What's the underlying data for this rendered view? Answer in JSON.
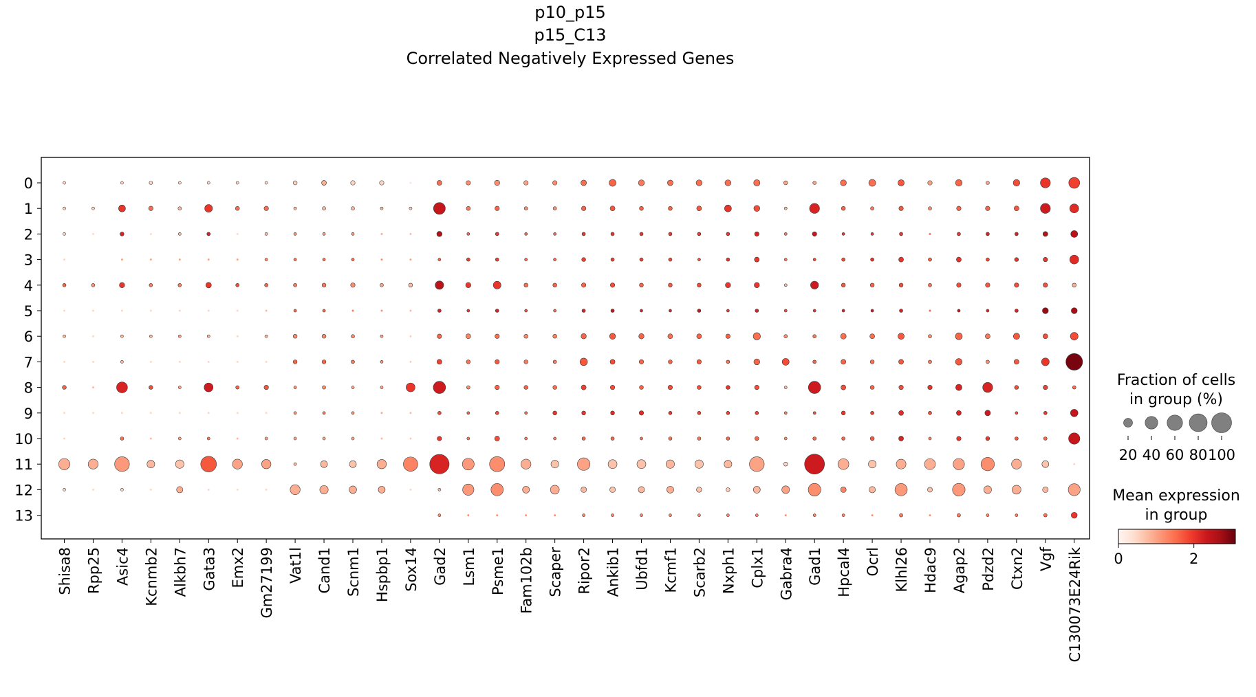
{
  "chart_data": {
    "type": "dotplot",
    "title_lines": [
      "p10_p15",
      "p15_C13",
      "Correlated Negatively Expressed Genes"
    ],
    "genes": [
      "Shisa8",
      "Rpp25",
      "Asic4",
      "Kcnmb2",
      "Alkbh7",
      "Gata3",
      "Emx2",
      "Gm27199",
      "Vat1l",
      "Cand1",
      "Scnm1",
      "Hspbp1",
      "Sox14",
      "Gad2",
      "Lsm1",
      "Psme1",
      "Fam102b",
      "Scaper",
      "Ripor2",
      "Ankib1",
      "Ubfd1",
      "Kcmf1",
      "Scarb2",
      "Nxph1",
      "Cplx1",
      "Gabra4",
      "Gad1",
      "Hpcal4",
      "Ocrl",
      "Klhl26",
      "Hdac9",
      "Agap2",
      "Pdzd2",
      "Ctxn2",
      "Vgf",
      "C130073E24Rik"
    ],
    "groups": [
      "0",
      "1",
      "2",
      "3",
      "4",
      "5",
      "6",
      "7",
      "8",
      "9",
      "10",
      "11",
      "12",
      "13"
    ],
    "fraction_percent": [
      [
        2,
        0,
        2,
        3,
        2,
        2,
        2,
        2,
        4,
        6,
        5,
        5,
        1,
        6,
        5,
        7,
        5,
        5,
        8,
        12,
        9,
        8,
        9,
        9,
        10,
        4,
        3,
        9,
        12,
        10,
        5,
        11,
        3,
        11,
        25,
        30
      ],
      [
        2,
        2,
        12,
        5,
        3,
        15,
        4,
        5,
        2,
        3,
        3,
        2,
        2,
        35,
        4,
        5,
        3,
        3,
        5,
        6,
        4,
        4,
        6,
        12,
        9,
        2,
        25,
        4,
        3,
        5,
        3,
        5,
        5,
        6,
        25,
        20
      ],
      [
        2,
        1,
        4,
        1,
        2,
        3,
        1,
        2,
        2,
        2,
        2,
        1,
        1,
        7,
        2,
        3,
        2,
        2,
        3,
        3,
        3,
        3,
        3,
        3,
        5,
        2,
        5,
        2,
        2,
        3,
        1,
        3,
        3,
        3,
        6,
        12
      ],
      [
        1,
        0,
        1,
        1,
        1,
        1,
        1,
        2,
        2,
        2,
        2,
        1,
        1,
        2,
        3,
        3,
        2,
        2,
        4,
        3,
        3,
        3,
        2,
        3,
        6,
        2,
        2,
        3,
        3,
        6,
        3,
        6,
        3,
        4,
        5,
        20
      ],
      [
        3,
        3,
        7,
        3,
        3,
        8,
        3,
        3,
        3,
        4,
        5,
        3,
        4,
        18,
        7,
        15,
        4,
        4,
        5,
        5,
        4,
        4,
        4,
        7,
        7,
        2,
        16,
        4,
        4,
        4,
        3,
        5,
        5,
        5,
        5,
        4
      ],
      [
        1,
        1,
        1,
        1,
        1,
        1,
        1,
        1,
        2,
        2,
        1,
        1,
        1,
        3,
        2,
        3,
        2,
        2,
        3,
        3,
        2,
        2,
        3,
        2,
        3,
        2,
        2,
        2,
        2,
        3,
        1,
        2,
        2,
        3,
        9,
        9
      ],
      [
        2,
        1,
        2,
        2,
        2,
        2,
        1,
        2,
        4,
        4,
        3,
        2,
        1,
        5,
        6,
        5,
        4,
        4,
        7,
        9,
        7,
        6,
        6,
        5,
        13,
        3,
        3,
        8,
        6,
        10,
        3,
        12,
        6,
        10,
        6,
        15
      ],
      [
        1,
        1,
        2,
        1,
        1,
        1,
        1,
        1,
        4,
        4,
        3,
        2,
        1,
        6,
        4,
        5,
        4,
        3,
        14,
        6,
        5,
        4,
        5,
        3,
        9,
        12,
        3,
        6,
        4,
        6,
        3,
        11,
        3,
        6,
        15,
        70
      ],
      [
        4,
        1,
        30,
        4,
        2,
        20,
        3,
        5,
        2,
        3,
        2,
        2,
        20,
        38,
        3,
        5,
        4,
        4,
        6,
        5,
        4,
        5,
        4,
        4,
        5,
        2,
        38,
        6,
        4,
        5,
        5,
        10,
        25,
        4,
        5,
        3
      ],
      [
        1,
        1,
        1,
        1,
        1,
        1,
        1,
        1,
        2,
        2,
        2,
        1,
        1,
        3,
        2,
        3,
        2,
        4,
        4,
        4,
        5,
        3,
        3,
        3,
        3,
        2,
        2,
        4,
        3,
        6,
        3,
        6,
        8,
        2,
        3,
        14
      ],
      [
        1,
        0,
        3,
        1,
        2,
        2,
        1,
        2,
        2,
        2,
        2,
        1,
        1,
        5,
        2,
        6,
        2,
        2,
        3,
        3,
        2,
        3,
        3,
        3,
        4,
        2,
        3,
        3,
        4,
        6,
        2,
        5,
        4,
        3,
        3,
        32
      ],
      [
        32,
        25,
        55,
        15,
        18,
        62,
        25,
        22,
        2,
        12,
        12,
        22,
        52,
        95,
        35,
        58,
        25,
        15,
        40,
        20,
        20,
        18,
        18,
        15,
        55,
        4,
        100,
        30,
        15,
        24,
        30,
        32,
        45,
        25,
        12,
        1
      ],
      [
        2,
        1,
        2,
        1,
        10,
        1,
        1,
        1,
        25,
        18,
        14,
        12,
        1,
        2,
        32,
        38,
        12,
        20,
        8,
        8,
        10,
        12,
        7,
        4,
        12,
        15,
        40,
        8,
        10,
        38,
        6,
        40,
        15,
        20,
        8,
        36
      ],
      [
        0,
        0,
        0,
        0,
        0,
        0,
        0,
        0,
        0,
        0,
        0,
        0,
        0,
        2,
        1,
        1,
        1,
        1,
        2,
        2,
        2,
        2,
        2,
        2,
        2,
        1,
        2,
        2,
        1,
        3,
        1,
        3,
        2,
        2,
        3,
        9
      ]
    ],
    "mean_expression": [
      [
        0.5,
        0,
        0.5,
        0.5,
        0.5,
        0.5,
        0.5,
        0.5,
        0.5,
        0.9,
        0.5,
        0.5,
        0.3,
        1.5,
        1.2,
        1.2,
        1.0,
        1.2,
        1.5,
        1.6,
        1.4,
        1.5,
        1.5,
        1.5,
        1.5,
        1.0,
        1.0,
        1.5,
        1.5,
        1.7,
        1.0,
        1.6,
        1.0,
        1.8,
        2.0,
        1.9
      ],
      [
        0.5,
        0.5,
        2.0,
        1.5,
        0.8,
        2.0,
        1.5,
        1.5,
        0.8,
        0.8,
        0.8,
        0.8,
        0.6,
        2.4,
        1.4,
        1.6,
        1.2,
        1.2,
        1.6,
        1.7,
        1.6,
        1.6,
        1.7,
        2.0,
        1.8,
        0.8,
        2.2,
        1.6,
        1.4,
        1.7,
        1.2,
        1.6,
        1.6,
        1.7,
        2.3,
        2.1
      ],
      [
        0.5,
        0.5,
        2.2,
        0.5,
        0.8,
        2.2,
        0.5,
        0.8,
        1.2,
        1.2,
        1.2,
        1.0,
        0.8,
        2.6,
        1.6,
        2.0,
        1.6,
        1.6,
        2.0,
        2.0,
        2.0,
        2.0,
        2.0,
        2.0,
        2.2,
        1.4,
        2.4,
        2.0,
        2.0,
        2.0,
        1.6,
        2.0,
        2.2,
        2.2,
        2.6,
        2.5
      ],
      [
        0.5,
        0,
        1.0,
        1.0,
        1.0,
        1.0,
        1.0,
        1.2,
        1.4,
        1.5,
        1.5,
        1.2,
        1.0,
        1.6,
        1.9,
        1.9,
        1.6,
        1.6,
        1.9,
        1.9,
        1.9,
        1.8,
        1.8,
        2.0,
        2.0,
        1.4,
        1.8,
        1.8,
        2.0,
        2.0,
        1.6,
        2.0,
        1.8,
        2.0,
        2.0,
        2.1
      ],
      [
        1.6,
        1.2,
        2.0,
        1.4,
        1.4,
        2.0,
        1.8,
        1.6,
        1.4,
        1.4,
        1.2,
        1.0,
        0.8,
        2.5,
        2.0,
        2.0,
        1.5,
        1.6,
        1.6,
        1.8,
        1.6,
        1.7,
        1.8,
        2.0,
        2.0,
        0.8,
        2.3,
        1.7,
        1.6,
        1.8,
        1.5,
        1.8,
        1.7,
        1.8,
        1.8,
        0.9
      ],
      [
        0.5,
        0.5,
        0.5,
        0.5,
        0.5,
        0.5,
        0.5,
        0.8,
        1.6,
        1.6,
        1.4,
        1.2,
        0.8,
        2.2,
        2.0,
        2.2,
        1.8,
        1.6,
        2.2,
        2.4,
        2.2,
        2.2,
        2.4,
        2.0,
        2.2,
        1.8,
        2.0,
        2.2,
        2.4,
        2.2,
        1.6,
        2.4,
        2.2,
        2.2,
        2.8,
        2.7
      ],
      [
        0.8,
        0.5,
        0.8,
        0.8,
        1.0,
        0.8,
        0.5,
        0.8,
        1.2,
        1.2,
        1.2,
        1.0,
        0.6,
        1.6,
        1.3,
        1.5,
        1.2,
        1.3,
        1.6,
        1.7,
        1.6,
        1.5,
        1.6,
        1.6,
        1.5,
        1.2,
        1.4,
        1.5,
        1.5,
        1.7,
        1.2,
        1.6,
        1.4,
        1.7,
        1.8,
        1.8
      ],
      [
        0.5,
        0.5,
        0.8,
        0.5,
        0.5,
        0.5,
        0.5,
        0.5,
        1.6,
        1.6,
        1.4,
        1.2,
        0.6,
        1.9,
        1.5,
        1.7,
        1.4,
        1.4,
        1.7,
        1.8,
        1.6,
        1.6,
        1.7,
        1.5,
        1.6,
        1.8,
        1.6,
        1.6,
        1.5,
        1.7,
        1.4,
        1.7,
        1.2,
        1.7,
        2.0,
        3.0
      ],
      [
        1.6,
        0.8,
        2.2,
        1.8,
        1.0,
        2.3,
        1.6,
        1.7,
        1.2,
        1.2,
        1.0,
        1.0,
        2.0,
        2.3,
        1.2,
        1.6,
        1.6,
        1.5,
        1.9,
        1.8,
        1.6,
        1.8,
        1.8,
        2.0,
        1.8,
        0.8,
        2.3,
        1.8,
        1.6,
        1.8,
        2.0,
        2.2,
        2.2,
        1.8,
        1.9,
        1.5
      ],
      [
        0.5,
        0.5,
        0.5,
        0.5,
        0.5,
        0.5,
        0.5,
        0.5,
        1.2,
        1.4,
        1.2,
        1.0,
        0.8,
        1.8,
        1.6,
        1.8,
        1.6,
        2.0,
        2.0,
        2.1,
        2.1,
        2.0,
        1.9,
        1.9,
        1.9,
        1.4,
        1.8,
        2.0,
        1.9,
        2.1,
        1.8,
        2.2,
        2.3,
        1.8,
        2.0,
        2.4
      ],
      [
        0.5,
        0,
        1.5,
        0.8,
        1.0,
        1.4,
        0.8,
        1.0,
        1.0,
        1.0,
        1.0,
        0.8,
        0.6,
        2.0,
        1.4,
        1.8,
        1.4,
        1.4,
        1.6,
        1.6,
        1.5,
        1.5,
        1.5,
        1.6,
        1.6,
        1.2,
        1.6,
        1.6,
        1.7,
        2.2,
        1.4,
        2.0,
        2.0,
        1.7,
        1.6,
        2.4
      ],
      [
        0.9,
        0.9,
        1.1,
        0.8,
        0.7,
        1.7,
        1.0,
        1.0,
        0.8,
        0.8,
        0.7,
        0.9,
        1.3,
        2.2,
        1.1,
        1.2,
        0.9,
        0.7,
        1.0,
        0.7,
        0.7,
        0.8,
        0.7,
        0.8,
        1.0,
        0.5,
        2.3,
        0.9,
        0.7,
        0.9,
        0.9,
        1.0,
        1.2,
        0.9,
        0.7,
        0.5
      ],
      [
        0.5,
        0.5,
        0.5,
        0.5,
        0.9,
        0.5,
        0.5,
        0.5,
        0.9,
        0.9,
        0.9,
        0.9,
        0.5,
        0.8,
        1.1,
        1.2,
        0.9,
        0.9,
        0.8,
        0.7,
        0.8,
        0.9,
        0.7,
        0.6,
        0.8,
        1.0,
        1.2,
        1.3,
        0.8,
        1.1,
        0.7,
        1.1,
        0.9,
        0.9,
        0.8,
        1.0
      ],
      [
        0,
        0,
        0,
        0,
        0,
        0,
        0,
        0,
        0,
        0,
        0,
        0,
        0,
        1.2,
        1.2,
        1.2,
        1.2,
        1.2,
        1.3,
        1.3,
        1.3,
        1.3,
        1.3,
        1.3,
        1.3,
        1.2,
        1.3,
        1.3,
        1.2,
        1.4,
        1.2,
        1.4,
        1.3,
        1.3,
        1.5,
        2.0
      ]
    ],
    "size_legend": {
      "title_lines": [
        "Fraction of cells",
        "in group (%)"
      ],
      "values": [
        20,
        40,
        60,
        80,
        100
      ],
      "labels": [
        "20",
        "40",
        "60",
        "80",
        "100"
      ]
    },
    "color_legend": {
      "title_lines": [
        "Mean expression",
        "in group"
      ],
      "range": [
        0,
        3.1
      ],
      "ticks": [
        0,
        2
      ],
      "tick_labels": [
        "0",
        "2"
      ],
      "colormap": "Reds",
      "colors": [
        "#fff5f0",
        "#fee0d2",
        "#fcbba1",
        "#fc9272",
        "#fb6a4a",
        "#ef3b2c",
        "#cb181d",
        "#a50f15",
        "#67000d"
      ]
    },
    "grid": false
  }
}
